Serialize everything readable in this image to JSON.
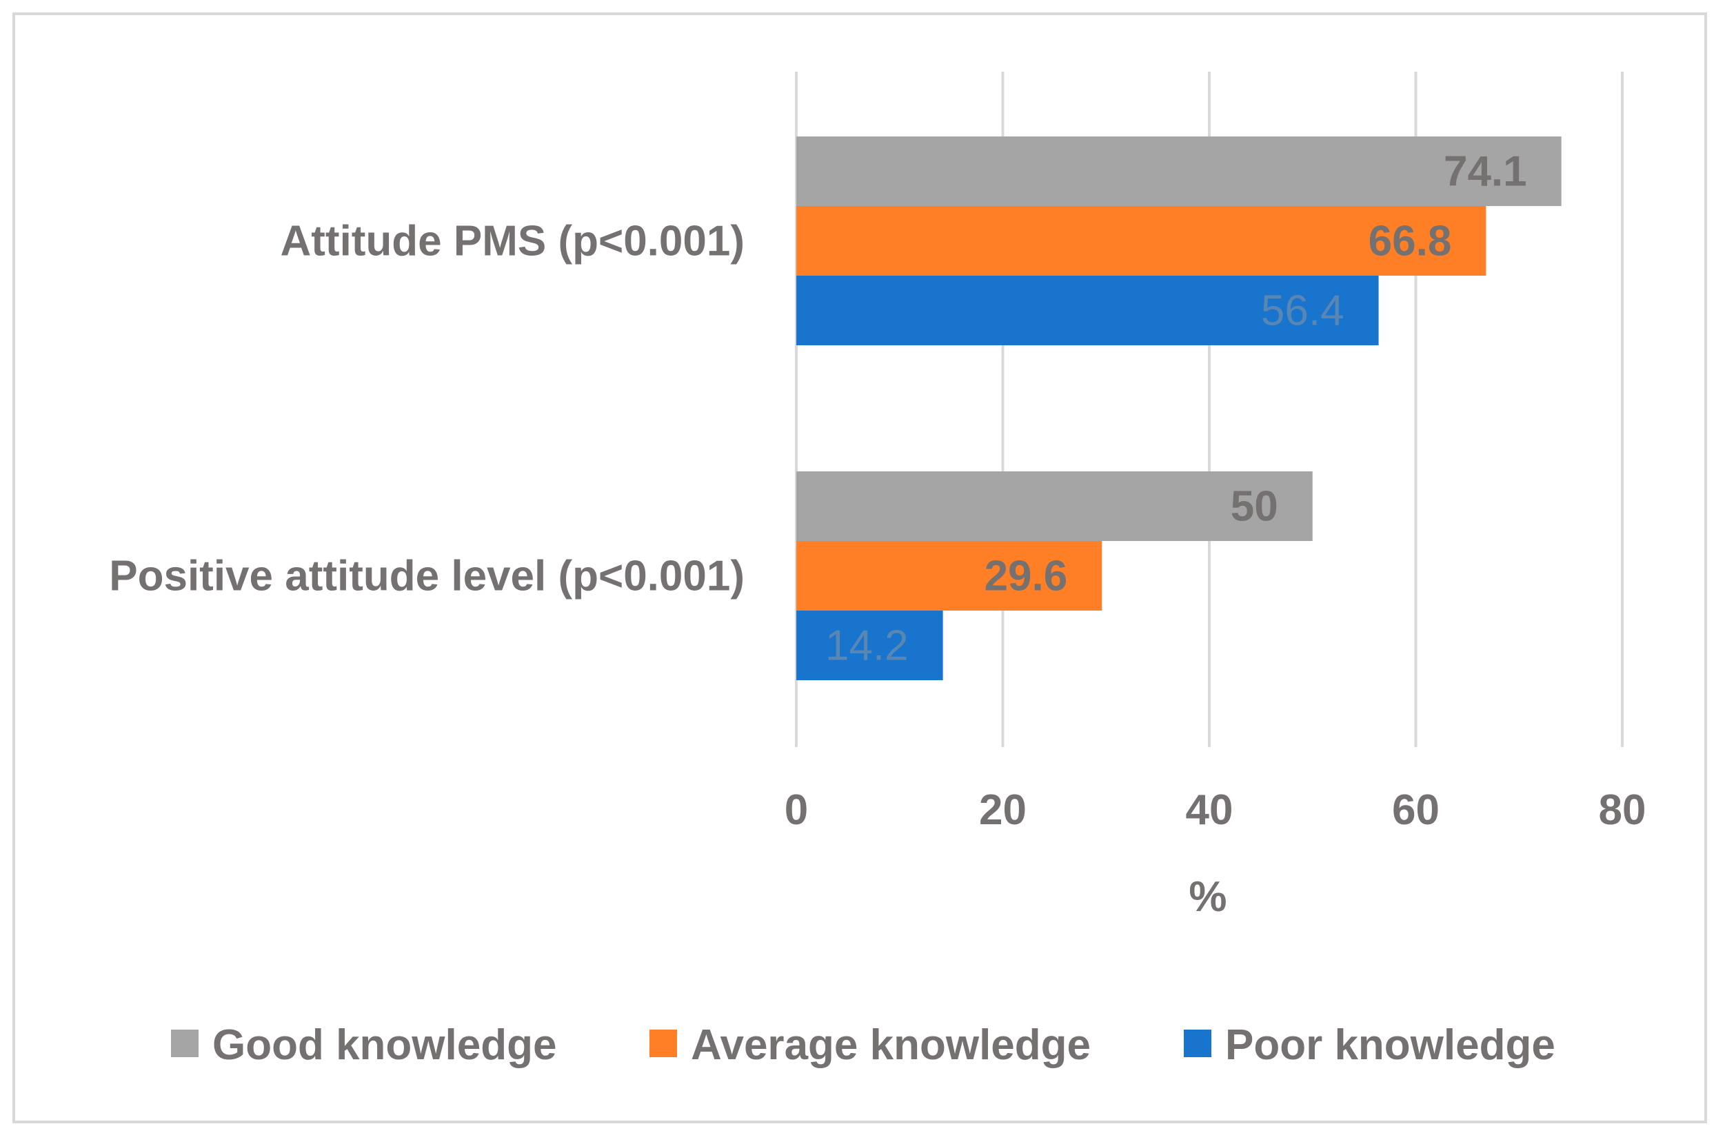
{
  "chart_data": {
    "type": "bar",
    "orientation": "horizontal",
    "categories": [
      "Attitude PMS (p<0.001)",
      "Positive attitude level (p<0.001)"
    ],
    "series": [
      {
        "name": "Good knowledge",
        "values": [
          74.1,
          50
        ],
        "labels": [
          "74.1",
          "50"
        ],
        "color": "#a5a5a5",
        "label_color": "#767171",
        "label_bold": true
      },
      {
        "name": "Average knowledge",
        "values": [
          66.8,
          29.6
        ],
        "labels": [
          "66.8",
          "29.6"
        ],
        "color": "#ff7f27",
        "label_color": "#767171",
        "label_bold": true
      },
      {
        "name": "Poor knowledge",
        "values": [
          56.4,
          14.2
        ],
        "labels": [
          "56.4",
          "14.2"
        ],
        "color": "#1874cd",
        "label_color": "#5a86b4",
        "label_bold": false
      }
    ],
    "xlabel": "%",
    "xlim": [
      0,
      80
    ],
    "xticks": [
      0,
      20,
      40,
      60,
      80
    ],
    "xtick_labels": [
      "0",
      "20",
      "40",
      "60",
      "80"
    ],
    "grid": true,
    "legend": "bottom",
    "text_color": "#767171",
    "grid_color": "#d9d9d9"
  }
}
